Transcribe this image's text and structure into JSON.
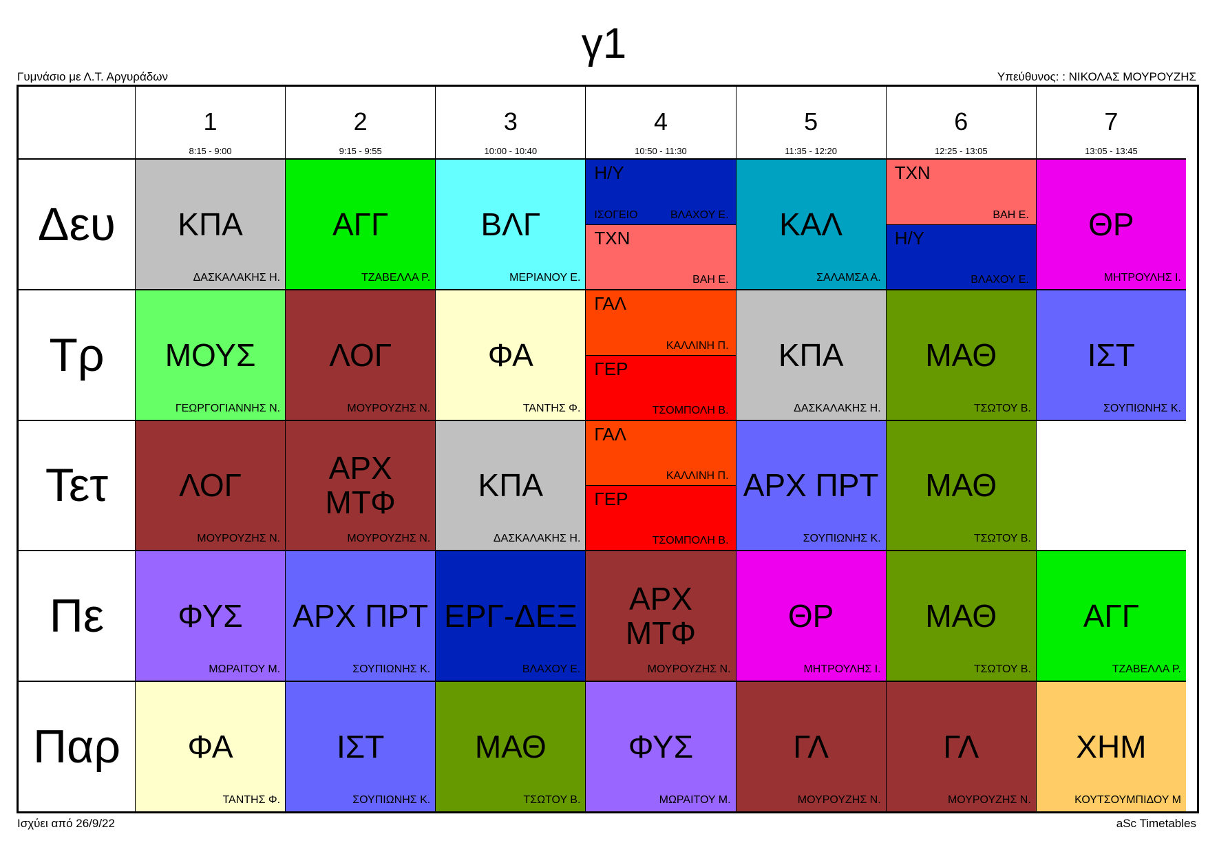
{
  "title": "γ1",
  "school": "Γυμνάσιο με Λ.Τ. Αργυράδων",
  "responsible": "Υπεύθυνος: : ΝΙΚΟΛΑΣ ΜΟΥΡΟΥΖΗΣ",
  "valid_from": "Ισχύει από 26/9/22",
  "brand": "aSc Timetables",
  "periods": [
    {
      "num": "1",
      "time": "8:15 - 9:00"
    },
    {
      "num": "2",
      "time": "9:15 - 9:55"
    },
    {
      "num": "3",
      "time": "10:00 - 10:40"
    },
    {
      "num": "4",
      "time": "10:50 - 11:30"
    },
    {
      "num": "5",
      "time": "11:35 - 12:20"
    },
    {
      "num": "6",
      "time": "12:25 - 13:05"
    },
    {
      "num": "7",
      "time": "13:05 - 13:45"
    }
  ],
  "days": [
    {
      "name": "Δευ",
      "cells": [
        {
          "subject": "ΚΠΑ",
          "teacher": "ΔΑΣΚΑΛΑΚΗΣ Η.",
          "color": "#c0c0c0"
        },
        {
          "subject": "ΑΓΓ",
          "teacher": "ΤΖΑΒΕΛΛΑ Ρ.",
          "color": "#00ee00"
        },
        {
          "subject": "ΒΛΓ",
          "teacher": "ΜΕΡΙΑΝΟΥ Ε.",
          "color": "#66ffff"
        },
        {
          "split": [
            {
              "subject": "Η/Υ",
              "teacher": "ΒΛΑΧΟΥ Ε.",
              "room": "ΙΣΟΓΕΙΟ",
              "color": "#0022bb"
            },
            {
              "subject": "ΤΧΝ",
              "teacher": "ΒΑΗ Ε.",
              "color": "#ff6666"
            }
          ]
        },
        {
          "subject": "ΚΑΛ",
          "teacher": "ΣΑΛΑΜΣΑ Α.",
          "color": "#00a2c2"
        },
        {
          "split": [
            {
              "subject": "ΤΧΝ",
              "teacher": "ΒΑΗ Ε.",
              "color": "#ff6666"
            },
            {
              "subject": "Η/Υ",
              "teacher": "ΒΛΑΧΟΥ Ε.",
              "color": "#0022bb"
            }
          ]
        },
        {
          "subject": "ΘΡ",
          "teacher": "ΜΗΤΡΟΥΛΗΣ Ι.",
          "color": "#ee00ee"
        }
      ]
    },
    {
      "name": "Τρ",
      "cells": [
        {
          "subject": "ΜΟΥΣ",
          "teacher": "ΓΕΩΡΓΟΓΙΑΝΝΗΣ Ν.",
          "color": "#66ff66"
        },
        {
          "subject": "ΛΟΓ",
          "teacher": "ΜΟΥΡΟΥΖΗΣ Ν.",
          "color": "#993333"
        },
        {
          "subject": "ΦΑ",
          "teacher": "ΤΑΝΤΗΣ Φ.",
          "color": "#ffffcc"
        },
        {
          "split": [
            {
              "subject": "ΓΑΛ",
              "teacher": "ΚΑΛΛΙΝΗ Π.",
              "color": "#ff4400"
            },
            {
              "subject": "ΓΕΡ",
              "teacher": "ΤΣΟΜΠΟΛΗ Β.",
              "color": "#ff0000"
            }
          ]
        },
        {
          "subject": "ΚΠΑ",
          "teacher": "ΔΑΣΚΑΛΑΚΗΣ Η.",
          "color": "#c0c0c0"
        },
        {
          "subject": "ΜΑΘ",
          "teacher": "ΤΣΩΤΟΥ Β.",
          "color": "#669900"
        },
        {
          "subject": "ΙΣΤ",
          "teacher": "ΣΟΥΠΙΩΝΗΣ Κ.",
          "color": "#6666ff"
        }
      ]
    },
    {
      "name": "Τετ",
      "cells": [
        {
          "subject": "ΛΟΓ",
          "teacher": "ΜΟΥΡΟΥΖΗΣ Ν.",
          "color": "#993333"
        },
        {
          "subject": "ΑΡΧ ΜΤΦ",
          "teacher": "ΜΟΥΡΟΥΖΗΣ Ν.",
          "color": "#993333"
        },
        {
          "subject": "ΚΠΑ",
          "teacher": "ΔΑΣΚΑΛΑΚΗΣ Η.",
          "color": "#c0c0c0"
        },
        {
          "split": [
            {
              "subject": "ΓΑΛ",
              "teacher": "ΚΑΛΛΙΝΗ Π.",
              "color": "#ff4400"
            },
            {
              "subject": "ΓΕΡ",
              "teacher": "ΤΣΟΜΠΟΛΗ Β.",
              "color": "#ff0000"
            }
          ]
        },
        {
          "subject": "ΑΡΧ ΠΡΤ",
          "teacher": "ΣΟΥΠΙΩΝΗΣ Κ.",
          "color": "#6666ff"
        },
        {
          "subject": "ΜΑΘ",
          "teacher": "ΤΣΩΤΟΥ Β.",
          "color": "#669900"
        },
        {
          "empty": true,
          "color": "#ffffff"
        }
      ]
    },
    {
      "name": "Πε",
      "cells": [
        {
          "subject": "ΦΥΣ",
          "teacher": "ΜΩΡΑΙΤΟΥ Μ.",
          "color": "#9966ff"
        },
        {
          "subject": "ΑΡΧ ΠΡΤ",
          "teacher": "ΣΟΥΠΙΩΝΗΣ Κ.",
          "color": "#6666ff"
        },
        {
          "subject": "ΕΡΓ-ΔΕΞ",
          "teacher": "ΒΛΑΧΟΥ Ε.",
          "color": "#0022bb"
        },
        {
          "subject": "ΑΡΧ ΜΤΦ",
          "teacher": "ΜΟΥΡΟΥΖΗΣ Ν.",
          "color": "#993333"
        },
        {
          "subject": "ΘΡ",
          "teacher": "ΜΗΤΡΟΥΛΗΣ Ι.",
          "color": "#ee00ee"
        },
        {
          "subject": "ΜΑΘ",
          "teacher": "ΤΣΩΤΟΥ Β.",
          "color": "#669900"
        },
        {
          "subject": "ΑΓΓ",
          "teacher": "ΤΖΑΒΕΛΛΑ Ρ.",
          "color": "#00ee00"
        }
      ]
    },
    {
      "name": "Παρ",
      "cells": [
        {
          "subject": "ΦΑ",
          "teacher": "ΤΑΝΤΗΣ Φ.",
          "color": "#ffffcc"
        },
        {
          "subject": "ΙΣΤ",
          "teacher": "ΣΟΥΠΙΩΝΗΣ Κ.",
          "color": "#6666ff"
        },
        {
          "subject": "ΜΑΘ",
          "teacher": "ΤΣΩΤΟΥ Β.",
          "color": "#669900"
        },
        {
          "subject": "ΦΥΣ",
          "teacher": "ΜΩΡΑΙΤΟΥ Μ.",
          "color": "#9966ff"
        },
        {
          "subject": "ΓΛ",
          "teacher": "ΜΟΥΡΟΥΖΗΣ Ν.",
          "color": "#993333"
        },
        {
          "subject": "ΓΛ",
          "teacher": "ΜΟΥΡΟΥΖΗΣ Ν.",
          "color": "#993333"
        },
        {
          "subject": "ΧΗΜ",
          "teacher": "ΚΟΥΤΣΟΥΜΠΙΔΟΥ Μ",
          "color": "#ffcc66"
        }
      ]
    }
  ]
}
